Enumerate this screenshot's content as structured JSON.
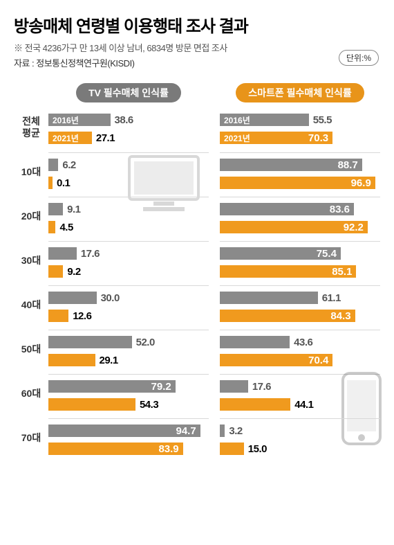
{
  "title": "방송매체 연령별 이용행태 조사 결과",
  "subtitle1": "※ 전국 4236가구 만 13세 이상 남녀, 6834명 방문 면접 조사",
  "subtitle2": "자료 : 정보통신정책연구원(KISDI)",
  "unit": "단위:%",
  "columns": {
    "tv": {
      "label": "TV 필수매체 인식률",
      "head_bg": "#7a7a7a"
    },
    "phone": {
      "label": "스마트폰 필수매체 인식률",
      "head_bg": "#e8941a"
    }
  },
  "years": {
    "a": "2016년",
    "b": "2021년"
  },
  "colors": {
    "bar_2016": "#8a8a8a",
    "bar_2021": "#f09a1e",
    "val_2016": "#555555",
    "val_2021": "#000000",
    "year_text": "#ffffff"
  },
  "max_tv": 100,
  "max_phone": 100,
  "rows": [
    {
      "label1": "전체",
      "label2": "평균",
      "tv": {
        "a": 38.6,
        "b": 27.1
      },
      "phone": {
        "a": 55.5,
        "b": 70.3
      },
      "show_year": true
    },
    {
      "label1": "10대",
      "tv": {
        "a": 6.2,
        "b": 0.1
      },
      "phone": {
        "a": 88.7,
        "b": 96.9
      }
    },
    {
      "label1": "20대",
      "tv": {
        "a": 9.1,
        "b": 4.5
      },
      "phone": {
        "a": 83.6,
        "b": 92.2
      }
    },
    {
      "label1": "30대",
      "tv": {
        "a": 17.6,
        "b": 9.2
      },
      "phone": {
        "a": 75.4,
        "b": 85.1
      }
    },
    {
      "label1": "40대",
      "tv": {
        "a": 30.0,
        "b": 12.6
      },
      "phone": {
        "a": 61.1,
        "b": 84.3
      }
    },
    {
      "label1": "50대",
      "tv": {
        "a": 52.0,
        "b": 29.1
      },
      "phone": {
        "a": 43.6,
        "b": 70.4
      }
    },
    {
      "label1": "60대",
      "tv": {
        "a": 79.2,
        "b": 54.3
      },
      "phone": {
        "a": 17.6,
        "b": 44.1
      }
    },
    {
      "label1": "70대",
      "tv": {
        "a": 94.7,
        "b": 83.9
      },
      "phone": {
        "a": 3.2,
        "b": 15.0
      }
    }
  ]
}
